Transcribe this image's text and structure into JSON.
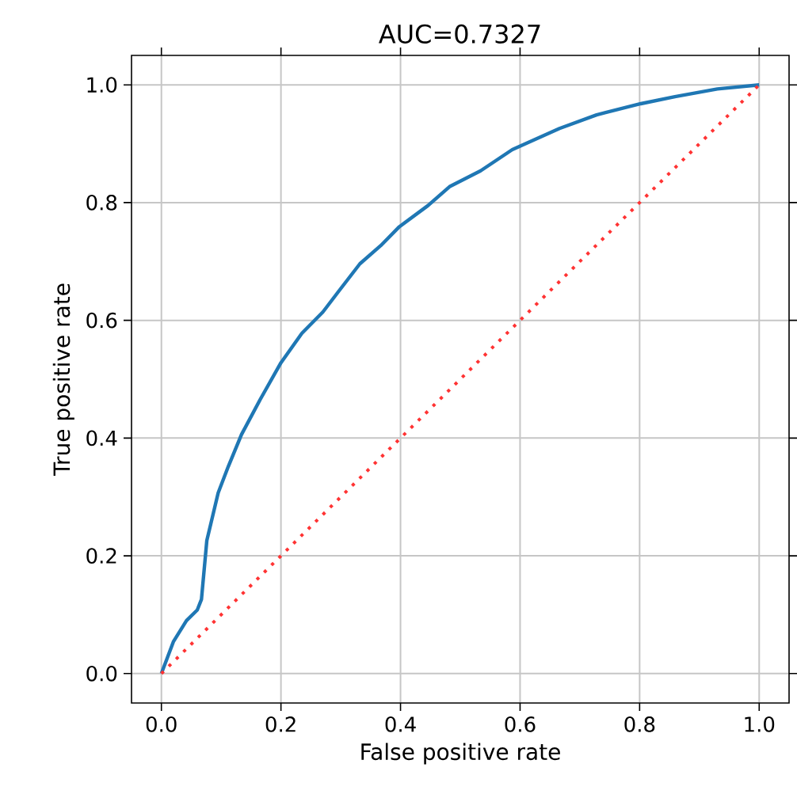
{
  "chart_data": {
    "type": "line",
    "title": "AUC=0.7327",
    "xlabel": "False positive rate",
    "ylabel": "True positive rate",
    "xlim": [
      -0.05,
      1.05
    ],
    "ylim": [
      -0.05,
      1.05
    ],
    "xticks": [
      {
        "value": 0,
        "label": "0.0"
      },
      {
        "value": 0.2,
        "label": "0.2"
      },
      {
        "value": 0.4,
        "label": "0.4"
      },
      {
        "value": 0.6,
        "label": "0.6"
      },
      {
        "value": 0.8,
        "label": "0.8"
      },
      {
        "value": 1,
        "label": "1.0"
      }
    ],
    "yticks": [
      {
        "value": 0,
        "label": "0.0"
      },
      {
        "value": 0.2,
        "label": "0.2"
      },
      {
        "value": 0.4,
        "label": "0.4"
      },
      {
        "value": 0.6,
        "label": "0.6"
      },
      {
        "value": 0.8,
        "label": "0.8"
      },
      {
        "value": 1,
        "label": "1.0"
      }
    ],
    "grid": true,
    "marker": "none",
    "series": [
      {
        "color": "#1f77b4",
        "line_style": "solid",
        "x": [
          0,
          0.02,
          0.042,
          0.06,
          0.067,
          0.076,
          0.095,
          0.112,
          0.134,
          0.165,
          0.2,
          0.235,
          0.27,
          0.297,
          0.332,
          0.367,
          0.398,
          0.446,
          0.482,
          0.534,
          0.587,
          0.666,
          0.728,
          0.802,
          0.859,
          0.93,
          1.0
        ],
        "values": [
          0,
          0.054,
          0.09,
          0.108,
          0.126,
          0.226,
          0.307,
          0.352,
          0.406,
          0.465,
          0.528,
          0.578,
          0.614,
          0.65,
          0.696,
          0.727,
          0.759,
          0.795,
          0.827,
          0.854,
          0.89,
          0.926,
          0.949,
          0.968,
          0.98,
          0.993,
          1.0
        ]
      },
      {
        "color": "#ff3333",
        "line_style": "dotted",
        "x": [
          0,
          1
        ],
        "values": [
          0,
          1
        ]
      }
    ]
  }
}
